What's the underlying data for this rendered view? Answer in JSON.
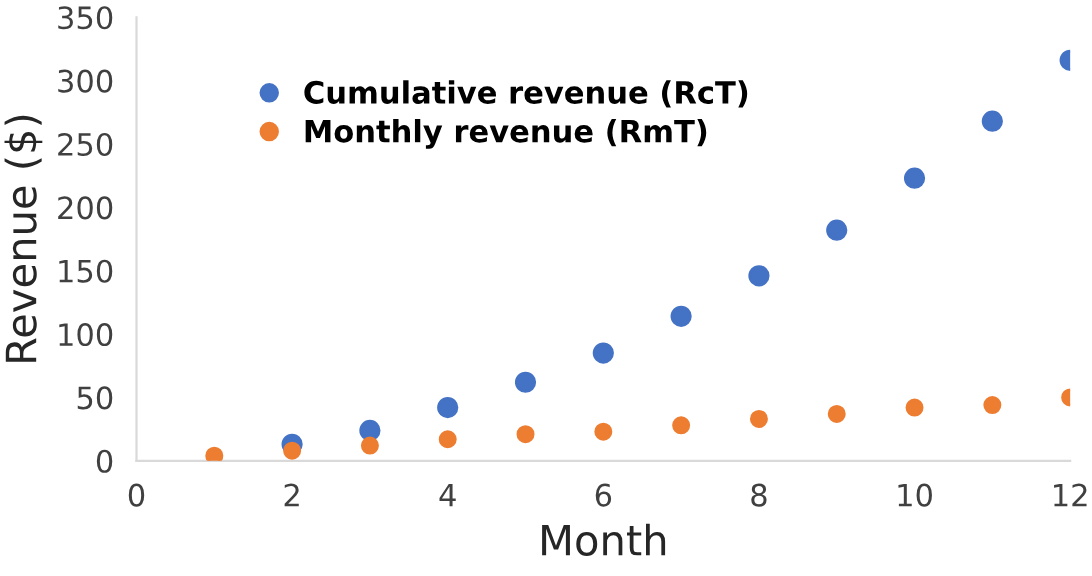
{
  "chart_data": {
    "type": "scatter",
    "xlabel": "Month",
    "ylabel": "Revenue ($)",
    "x": [
      1,
      2,
      3,
      4,
      5,
      6,
      7,
      8,
      9,
      10,
      11,
      12
    ],
    "series": [
      {
        "name": "Cumulative revenue (RcT)",
        "color": "#4472c4",
        "values": [
          null,
          13,
          24,
          42,
          62,
          85,
          114,
          146,
          182,
          223,
          268,
          316
        ]
      },
      {
        "name": "Monthly revenue (RmT)",
        "color": "#ed7d31",
        "values": [
          4,
          8,
          12,
          17,
          21,
          23,
          28,
          33,
          37,
          42,
          44,
          50
        ]
      }
    ],
    "xlim": [
      0,
      12
    ],
    "xticks": [
      0,
      2,
      4,
      6,
      8,
      10,
      12
    ],
    "ylim": [
      0,
      350
    ],
    "yticks": [
      0,
      50,
      100,
      150,
      200,
      250,
      300,
      350
    ],
    "grid": false,
    "legend": "top left",
    "marker": "circle"
  }
}
